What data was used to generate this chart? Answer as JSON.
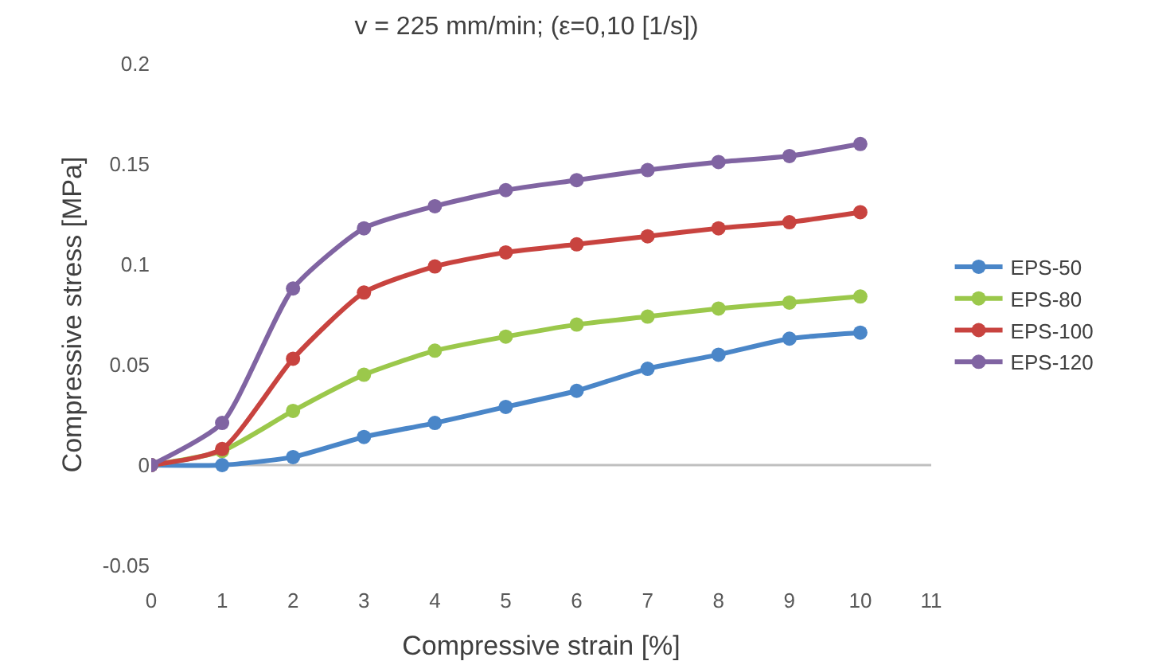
{
  "chart_data": {
    "type": "line",
    "title": "v = 225 mm/min; (ε=0,10 [1/s])",
    "xlabel": "Compressive strain [%]",
    "ylabel": "Compressive stress [MPa]",
    "x": [
      0,
      1,
      2,
      3,
      4,
      5,
      6,
      7,
      8,
      9,
      10
    ],
    "series": [
      {
        "name": "EPS-50",
        "color": "#4a86c8",
        "values": [
          0,
          0,
          0.004,
          0.014,
          0.021,
          0.029,
          0.037,
          0.048,
          0.055,
          0.063,
          0.066
        ]
      },
      {
        "name": "EPS-80",
        "color": "#9bc84b",
        "values": [
          0,
          0.007,
          0.027,
          0.045,
          0.057,
          0.064,
          0.07,
          0.074,
          0.078,
          0.081,
          0.084
        ]
      },
      {
        "name": "EPS-100",
        "color": "#c8433f",
        "values": [
          0,
          0.008,
          0.053,
          0.086,
          0.099,
          0.106,
          0.11,
          0.114,
          0.118,
          0.121,
          0.126
        ]
      },
      {
        "name": "EPS-120",
        "color": "#8064a2",
        "values": [
          0,
          0.021,
          0.088,
          0.118,
          0.129,
          0.137,
          0.142,
          0.147,
          0.151,
          0.154,
          0.16
        ]
      }
    ],
    "xlim": [
      0,
      11
    ],
    "xticks": [
      0,
      1,
      2,
      3,
      4,
      5,
      6,
      7,
      8,
      9,
      10,
      11
    ],
    "ylim": [
      -0.05,
      0.2
    ],
    "yticks": [
      -0.05,
      0,
      0.05,
      0.1,
      0.15,
      0.2
    ],
    "ref_lines": [
      {
        "axis": "y",
        "value": 0,
        "color": "#bfbfbf"
      }
    ],
    "grid": false,
    "legend": "right",
    "marker": "circle",
    "line_style": "solid"
  }
}
